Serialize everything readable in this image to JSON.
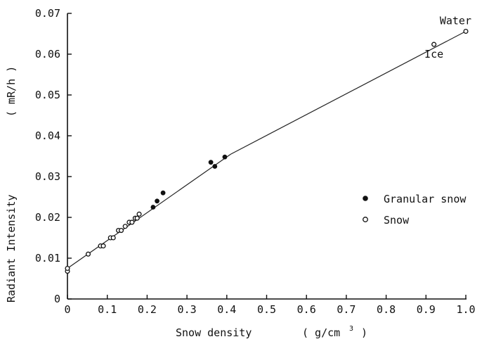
{
  "chart_data": {
    "type": "scatter",
    "xlabel_parts": [
      "Snow density",
      "( g/cm",
      "3",
      " )"
    ],
    "ylabel_parts": [
      "Radiant Intensity",
      "( mR/h )"
    ],
    "xlim": [
      0,
      1.0
    ],
    "ylim": [
      0,
      0.07
    ],
    "x_ticks": [
      "0",
      "0.1",
      "0.2",
      "0.3",
      "0.4",
      "0.5",
      "0.6",
      "0.7",
      "0.8",
      "0.9",
      "1.0"
    ],
    "x_tick_values": [
      0,
      0.1,
      0.2,
      0.3,
      0.4,
      0.5,
      0.6,
      0.7,
      0.8,
      0.9,
      1.0
    ],
    "y_ticks": [
      "0",
      "0.01",
      "0.02",
      "0.03",
      "0.04",
      "0.05",
      "0.06",
      "0.07"
    ],
    "y_tick_values": [
      0,
      0.01,
      0.02,
      0.03,
      0.04,
      0.05,
      0.06,
      0.07
    ],
    "grid": false,
    "legend_position": "right-middle",
    "series": [
      {
        "name": "Granular snow",
        "marker": "filled-circle",
        "x": [
          0.215,
          0.225,
          0.24,
          0.36,
          0.37,
          0.395
        ],
        "y": [
          0.0225,
          0.024,
          0.026,
          0.0335,
          0.0325,
          0.0348
        ]
      },
      {
        "name": "Snow",
        "marker": "open-circle",
        "x": [
          0.0,
          0.0,
          0.052,
          0.083,
          0.09,
          0.108,
          0.115,
          0.128,
          0.135,
          0.145,
          0.155,
          0.162,
          0.17,
          0.175,
          0.18,
          0.92,
          1.0
        ],
        "y": [
          0.0068,
          0.0075,
          0.011,
          0.013,
          0.013,
          0.015,
          0.015,
          0.0168,
          0.0168,
          0.0178,
          0.0188,
          0.0188,
          0.0198,
          0.0198,
          0.0208,
          0.0624,
          0.0656
        ]
      }
    ],
    "fit_line_segments": [
      {
        "x": [
          0.0,
          0.41
        ],
        "y": [
          0.0075,
          0.0355
        ]
      },
      {
        "x": [
          0.41,
          1.0
        ],
        "y": [
          0.0355,
          0.0656
        ]
      }
    ],
    "annotations": [
      {
        "text": "Water",
        "x": 1.0,
        "y": 0.0656,
        "anchor": "above-right"
      },
      {
        "text": "Ice",
        "x": 0.92,
        "y": 0.0624,
        "anchor": "below"
      }
    ]
  }
}
